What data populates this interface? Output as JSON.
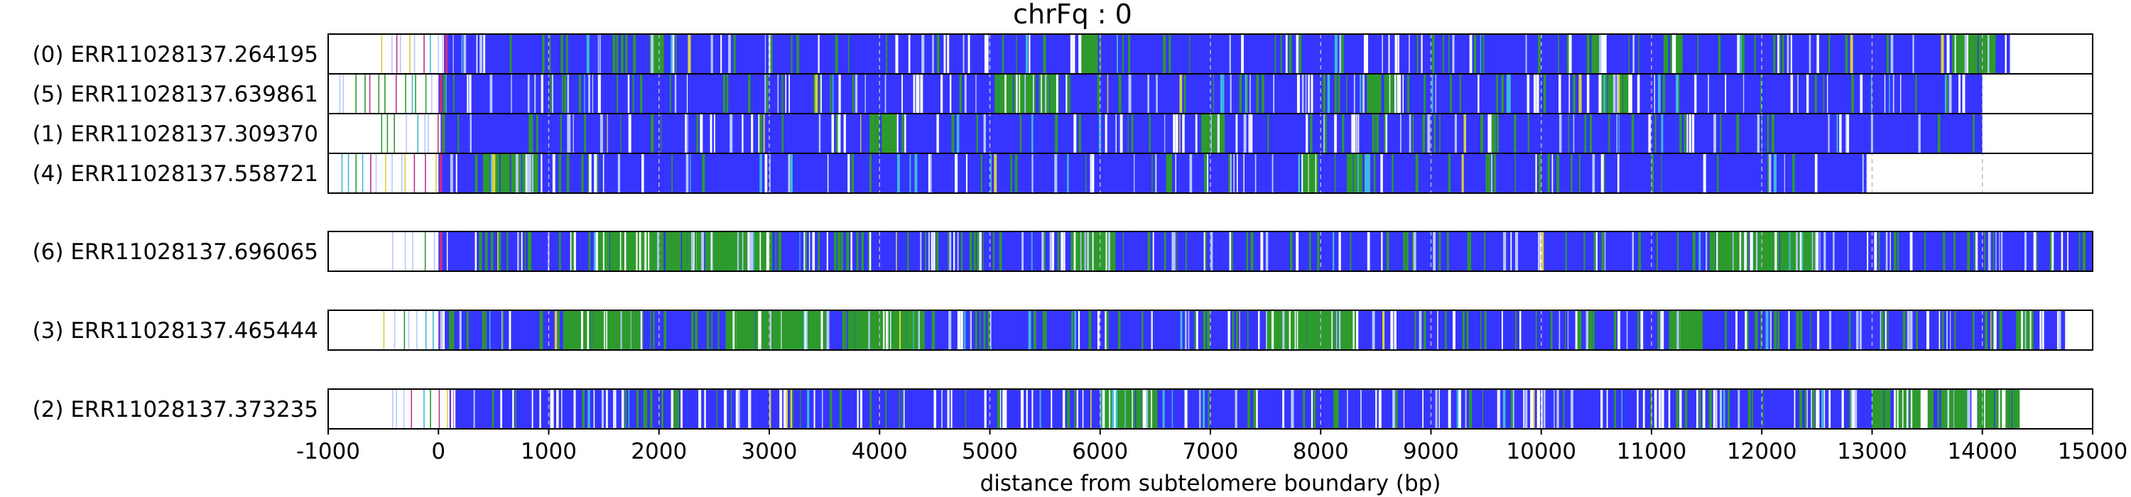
{
  "chart_data": {
    "type": "read-composition track plot",
    "title": "chrFq : 0",
    "xlabel": "distance from subtelomere boundary (bp)",
    "xlim": [
      -1000,
      15000
    ],
    "xticks": [
      "-1000",
      "0",
      "1000",
      "2000",
      "3000",
      "4000",
      "5000",
      "6000",
      "7000",
      "8000",
      "9000",
      "10000",
      "11000",
      "12000",
      "13000",
      "14000",
      "15000"
    ],
    "gridlines_dashed_at": [
      1000,
      2000,
      3000,
      4000,
      5000,
      6000,
      7000,
      8000,
      9000,
      10000,
      11000,
      12000,
      13000,
      14000
    ],
    "colors": {
      "dominant": "#3535ff",
      "green": "#2c9a2c",
      "light": "#b8c8ff",
      "cyan": "#40b8d8",
      "yellow": "#d8d040",
      "magenta": "#c0308a",
      "gridline": "#b7b7c7",
      "frame": "#000000"
    },
    "groups": [
      {
        "reads": [
          {
            "label": "(0) ERR11028137.264195",
            "start": -520,
            "dense_start": 50,
            "end": 14250,
            "seed": 264195,
            "green_density": 0.1,
            "white_density": 0.07,
            "clusters": [
              [
                1900,
                2000
              ],
              [
                5800,
                5950
              ],
              [
                10400,
                10550
              ],
              [
                11100,
                11250
              ],
              [
                13700,
                14100
              ]
            ]
          },
          {
            "label": "(5) ERR11028137.639861",
            "start": -900,
            "dense_start": 0,
            "end": 14000,
            "seed": 639861,
            "green_density": 0.1,
            "white_density": 0.1,
            "clusters": [
              [
                5000,
                5600
              ],
              [
                8400,
                8700
              ],
              [
                10500,
                10800
              ]
            ]
          },
          {
            "label": "(1) ERR11028137.309370",
            "start": -520,
            "dense_start": 20,
            "end": 14000,
            "seed": 309370,
            "green_density": 0.09,
            "white_density": 0.05,
            "clusters": [
              [
                3900,
                4200
              ],
              [
                6900,
                7100
              ],
              [
                9500,
                9600
              ]
            ]
          },
          {
            "label": "(4) ERR11028137.558721",
            "start": -880,
            "dense_start": 0,
            "end": 12950,
            "seed": 558721,
            "green_density": 0.1,
            "white_density": 0.05,
            "clusters": [
              [
                400,
                900
              ],
              [
                7800,
                7950
              ],
              [
                8200,
                8400
              ]
            ]
          }
        ]
      },
      {
        "reads": [
          {
            "label": "(6) ERR11028137.696065",
            "start": -420,
            "dense_start": 0,
            "end": 15000,
            "seed": 696065,
            "green_density": 0.15,
            "white_density": 0.09,
            "clusters": [
              [
                1400,
                3000
              ],
              [
                5700,
                6100
              ],
              [
                11500,
                12500
              ]
            ]
          }
        ]
      },
      {
        "reads": [
          {
            "label": "(3) ERR11028137.465444",
            "start": -500,
            "dense_start": 0,
            "end": 14750,
            "seed": 465444,
            "green_density": 0.2,
            "white_density": 0.08,
            "clusters": [
              [
                1100,
                1800
              ],
              [
                2600,
                3500
              ],
              [
                3700,
                4400
              ],
              [
                7500,
                8300
              ],
              [
                11150,
                11450
              ],
              [
                14300,
                14450
              ]
            ]
          }
        ]
      },
      {
        "reads": [
          {
            "label": "(2) ERR11028137.373235",
            "start": -420,
            "dense_start": 100,
            "end": 14350,
            "seed": 373235,
            "green_density": 0.11,
            "white_density": 0.16,
            "clusters": [
              [
                6000,
                6500
              ],
              [
                13000,
                14300
              ]
            ]
          }
        ]
      }
    ]
  }
}
